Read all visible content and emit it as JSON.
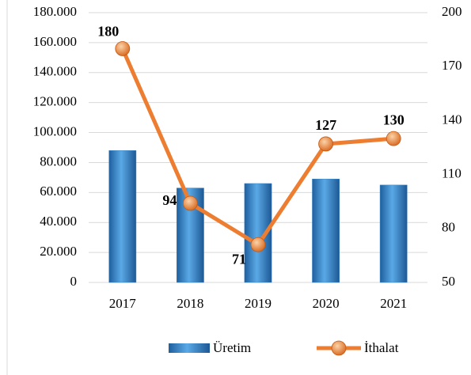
{
  "chart_data": {
    "type": "bar",
    "categories": [
      "2017",
      "2018",
      "2019",
      "2020",
      "2021"
    ],
    "series": [
      {
        "name": "Üretim",
        "type": "bar",
        "color": "#3a86c8",
        "values": [
          88000,
          63000,
          66000,
          69000,
          65000
        ]
      },
      {
        "name": "İthalat",
        "type": "line",
        "axis": "y2",
        "color": "#ed7d31",
        "values": [
          180,
          94,
          71,
          127,
          130
        ]
      }
    ],
    "ylim": [
      0,
      180000
    ],
    "yticks": [
      0,
      {
        "value": 20000,
        "label": "20.000"
      },
      {
        "value": 40000,
        "label": "40.000"
      },
      {
        "value": 60000,
        "label": "60.000"
      },
      {
        "value": 80000,
        "label": "80.000"
      },
      {
        "value": 100000,
        "label": "100.000"
      },
      {
        "value": 120000,
        "label": "120.000"
      },
      {
        "value": 140000,
        "label": "140.000"
      },
      {
        "value": 160000,
        "label": "160.000"
      },
      {
        "value": 180000,
        "label": "180.000"
      }
    ],
    "y2lim": [
      50,
      200
    ],
    "y2ticks": [
      50,
      80,
      110,
      140,
      170,
      200
    ],
    "grid": true,
    "legend": "bottom"
  }
}
